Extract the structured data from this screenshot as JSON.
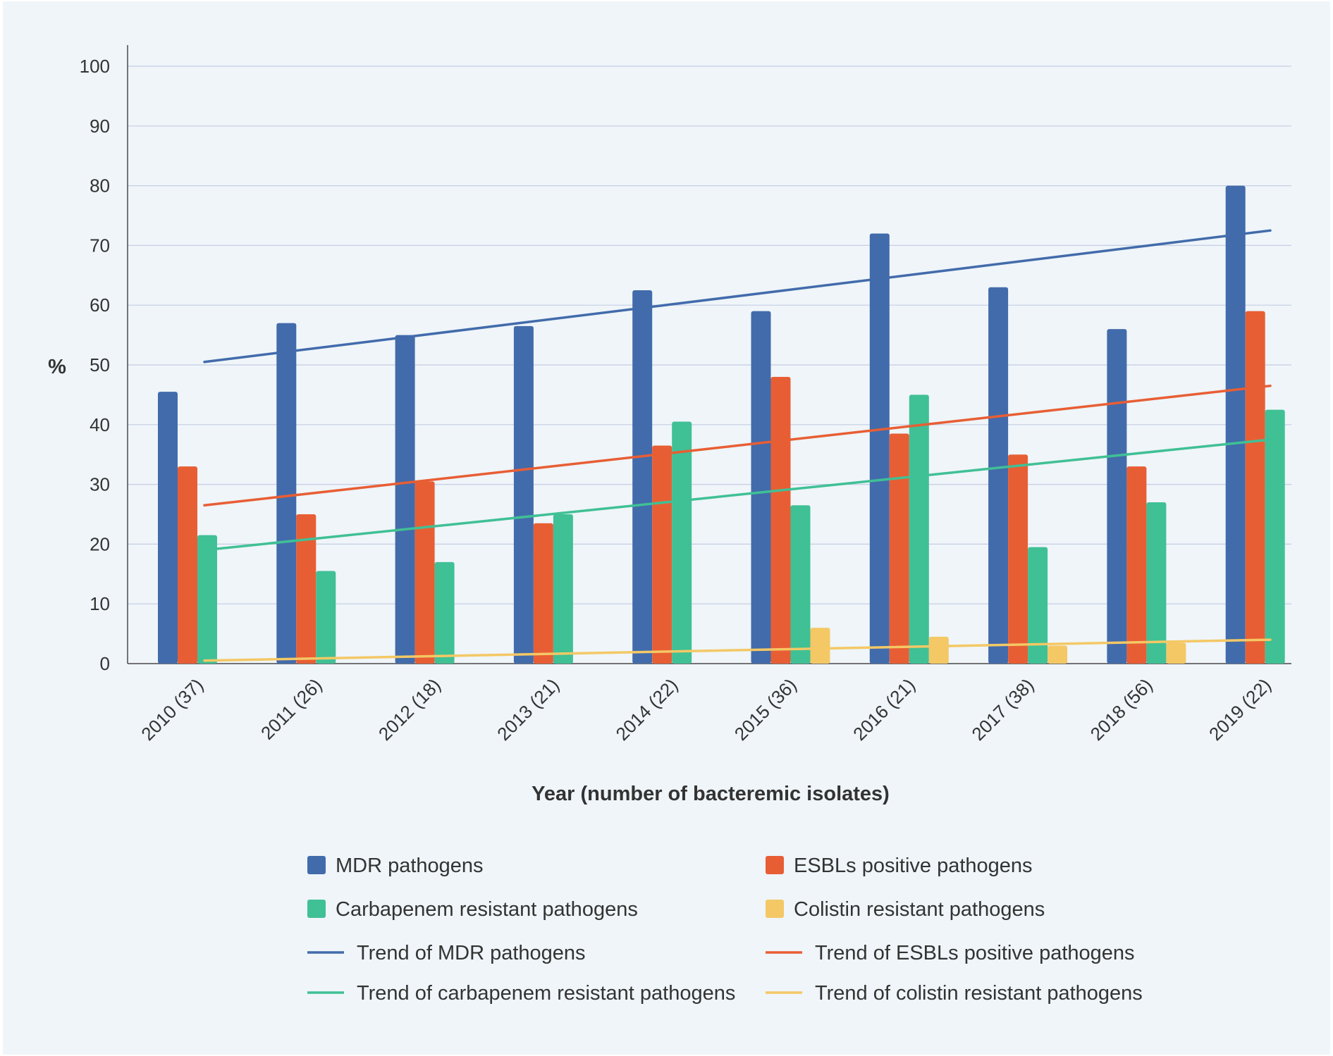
{
  "chart_data": {
    "type": "bar",
    "title": "",
    "xlabel": "Year (number of bacteremic isolates)",
    "ylabel": "%",
    "ylim": [
      0,
      100
    ],
    "yticks": [
      0,
      10,
      20,
      30,
      40,
      50,
      60,
      70,
      80,
      90,
      100
    ],
    "grid": true,
    "legend_position": "bottom",
    "categories": [
      "2010 (37)",
      "2011 (26)",
      "2012 (18)",
      "2013 (21)",
      "2014 (22)",
      "2015 (36)",
      "2016 (21)",
      "2017 (38)",
      "2018 (56)",
      "2019 (22)"
    ],
    "series": [
      {
        "name": "MDR pathogens",
        "color": "#426bab",
        "values": [
          45.5,
          57,
          55,
          56.5,
          62.5,
          59,
          72,
          63,
          56,
          80
        ]
      },
      {
        "name": "ESBLs positive pathogens",
        "color": "#e85e34",
        "values": [
          33,
          25,
          30.5,
          23.5,
          36.5,
          48,
          38.5,
          35,
          33,
          59
        ]
      },
      {
        "name": "Carbapenem resistant pathogens",
        "color": "#40c095",
        "values": [
          21.5,
          15.5,
          17,
          25,
          40.5,
          26.5,
          45,
          19.5,
          27,
          42.5
        ]
      },
      {
        "name": "Colistin resistant pathogens",
        "color": "#f4c865",
        "values": [
          0,
          0,
          0,
          0,
          0,
          6,
          4.5,
          3,
          3.5,
          0
        ]
      }
    ],
    "trends": [
      {
        "name": "Trend of MDR pathogens",
        "color": "#426bab",
        "start": 50.5,
        "end": 72.5
      },
      {
        "name": "Trend of ESBLs positive pathogens",
        "color": "#e85e34",
        "start": 26.5,
        "end": 46.5
      },
      {
        "name": "Trend of carbapenem resistant pathogens",
        "color": "#40c095",
        "start": 19,
        "end": 37.5
      },
      {
        "name": "Trend of colistin resistant pathogens",
        "color": "#f4c865",
        "start": 0.5,
        "end": 4
      }
    ]
  }
}
